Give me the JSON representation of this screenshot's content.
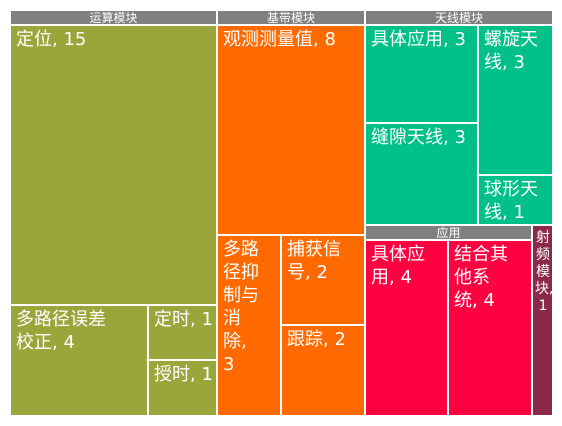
{
  "chart_data": {
    "type": "treemap",
    "value_separator": ", ",
    "groups": [
      {
        "name": "运算模块",
        "color": "#9aa63a",
        "children": [
          {
            "name": "定位",
            "value": 15
          },
          {
            "name": "多路径误差校正",
            "value": 4
          },
          {
            "name": "定时",
            "value": 1
          },
          {
            "name": "授时",
            "value": 1
          }
        ]
      },
      {
        "name": "基带模块",
        "color": "#ff6a00",
        "children": [
          {
            "name": "观测测量值",
            "value": 8
          },
          {
            "name": "多路径抑制与消除",
            "value": 3
          },
          {
            "name": "捕获信号",
            "value": 2
          },
          {
            "name": "跟踪",
            "value": 2
          }
        ]
      },
      {
        "name": "天线模块",
        "color": "#00c08a",
        "children": [
          {
            "name": "具体应用",
            "value": 3
          },
          {
            "name": "螺旋天线",
            "value": 3
          },
          {
            "name": "缝隙天线",
            "value": 3
          },
          {
            "name": "球形天线",
            "value": 1
          }
        ]
      },
      {
        "name": "应用",
        "color": "#ff0040",
        "children": [
          {
            "name": "具体应用",
            "value": 4
          },
          {
            "name": "结合其他系统",
            "value": 4
          }
        ]
      },
      {
        "name": "射频模块",
        "color": "#8b2a46",
        "children": []
      }
    ],
    "leaf_without_group": {
      "name": "射频模块",
      "value": 1
    }
  }
}
